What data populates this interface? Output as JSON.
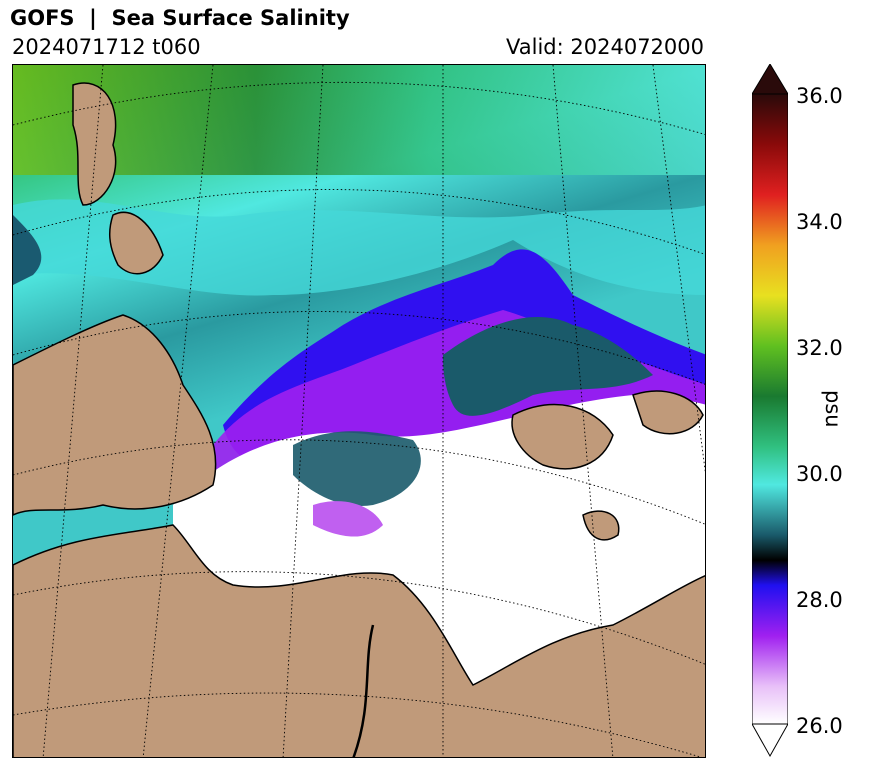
{
  "header": {
    "title": "GOFS  |  Sea Surface Salinity",
    "run": "2024071712 t060",
    "valid": "Valid: 2024072000"
  },
  "colorbar": {
    "label": "psu",
    "ticks": [
      "36.0",
      "34.0",
      "32.0",
      "30.0",
      "28.0",
      "26.0"
    ],
    "min": 26.0,
    "max": 36.0,
    "extend": "both"
  },
  "colors": {
    "land": "#c09a7a",
    "fresh": "#ffffff",
    "violet": "#a020f0",
    "blue": "#3010f0",
    "teal_dark": "#1a5a6a",
    "teal": "#30c0c0",
    "cyan": "#50e8e0",
    "green": "#30c070",
    "dark_green": "#1a7a30",
    "lime": "#70c020"
  }
}
